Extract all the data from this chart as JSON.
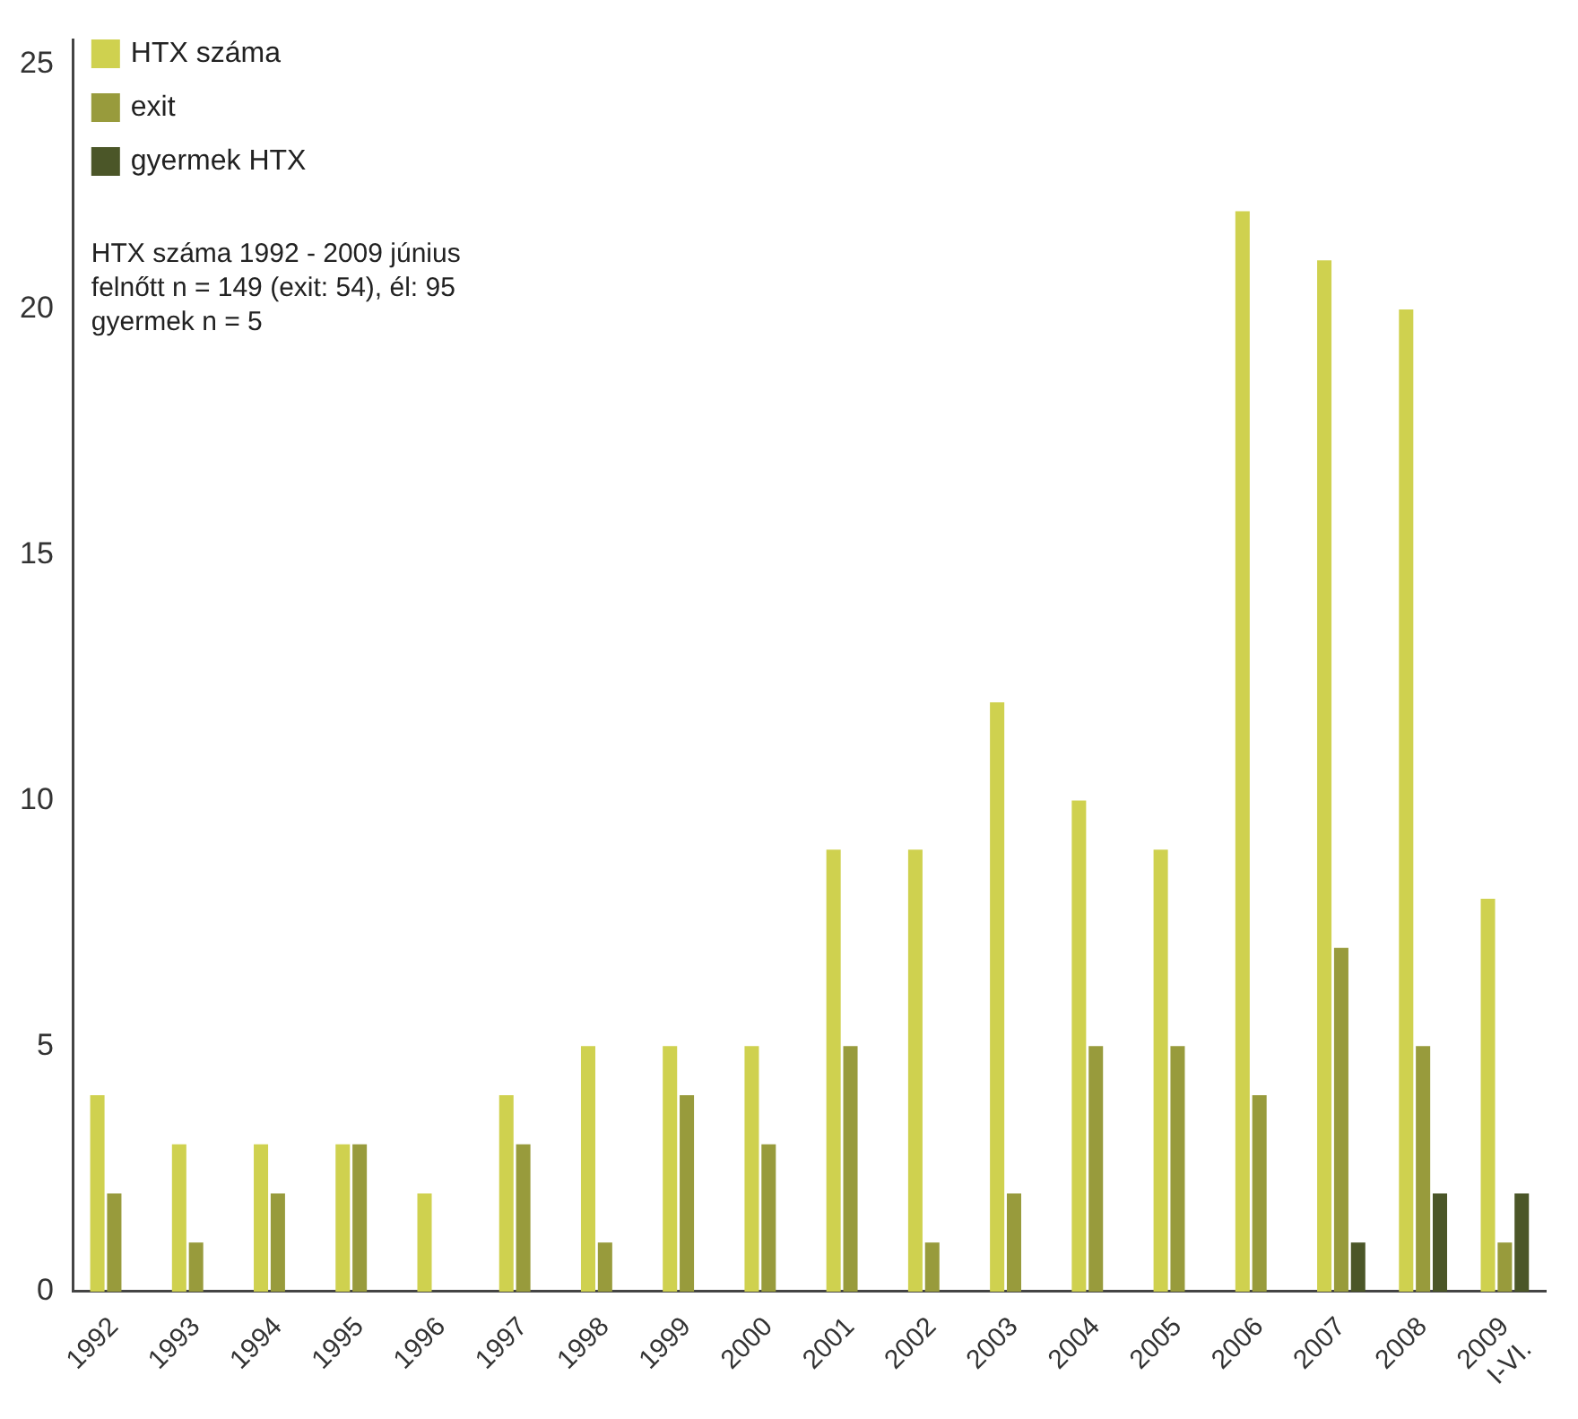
{
  "chart_data": {
    "type": "bar",
    "categories": [
      "1992",
      "1993",
      "1994",
      "1995",
      "1996",
      "1997",
      "1998",
      "1999",
      "2000",
      "2001",
      "2002",
      "2003",
      "2004",
      "2005",
      "2006",
      "2007",
      "2008",
      "2009 I-VI."
    ],
    "series": [
      {
        "name": "HTX száma",
        "color": "#cfd14f",
        "values": [
          4,
          3,
          3,
          3,
          2,
          4,
          5,
          5,
          5,
          9,
          9,
          12,
          10,
          9,
          22,
          21,
          20,
          8
        ]
      },
      {
        "name": "exit",
        "color": "#989b3c",
        "values": [
          2,
          1,
          2,
          3,
          null,
          3,
          1,
          4,
          3,
          5,
          1,
          2,
          5,
          5,
          4,
          7,
          5,
          1
        ]
      },
      {
        "name": "gyermek HTX",
        "color": "#4b5628",
        "values": [
          null,
          null,
          null,
          null,
          null,
          null,
          null,
          null,
          null,
          null,
          null,
          null,
          null,
          null,
          null,
          1,
          2,
          2
        ]
      }
    ],
    "ylim": [
      0,
      25.5
    ],
    "yticks": [
      0,
      5,
      10,
      15,
      20,
      25
    ],
    "grid": false,
    "legend": "top left",
    "annotations": [
      "HTX száma 1992 - 2009 június",
      "felnőtt n = 149 (exit: 54), él: 95",
      "gyermek n = 5"
    ]
  }
}
